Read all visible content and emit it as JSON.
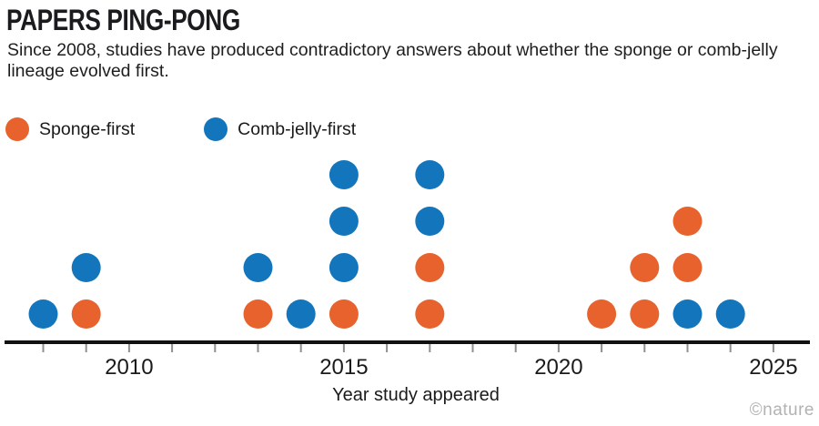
{
  "header": {
    "title": "PAPERS PING-PONG",
    "subtitle": "Since 2008, studies have produced contradictory answers about whether the sponge or comb-jelly lineage evolved first."
  },
  "legend": {
    "items": [
      {
        "key": "sponge-first",
        "label": "Sponge-first",
        "color": "#e7622d"
      },
      {
        "key": "comb-jelly-first",
        "label": "Comb-jelly-first",
        "color": "#1376bc"
      }
    ]
  },
  "chart_data": {
    "type": "scatter",
    "subtype": "stacked-dot-plot",
    "title": "PAPERS PING-PONG",
    "xlabel": "Year study appeared",
    "ylabel": "",
    "xlim": [
      2008,
      2025
    ],
    "grid": false,
    "legend_position": "top-left",
    "x_minor_ticks": [
      2008,
      2009,
      2010,
      2011,
      2012,
      2013,
      2014,
      2015,
      2016,
      2017,
      2018,
      2019,
      2020,
      2021,
      2022,
      2023,
      2024,
      2025
    ],
    "x_tick_labels": [
      "2010",
      "2015",
      "2020",
      "2025"
    ],
    "x_tick_label_years": [
      2010,
      2015,
      2020,
      2025
    ],
    "columns": [
      {
        "year": 2008,
        "stack": [
          "comb-jelly-first"
        ]
      },
      {
        "year": 2009,
        "stack": [
          "sponge-first",
          "comb-jelly-first"
        ]
      },
      {
        "year": 2013,
        "stack": [
          "sponge-first",
          "comb-jelly-first"
        ]
      },
      {
        "year": 2014,
        "stack": [
          "comb-jelly-first"
        ]
      },
      {
        "year": 2015,
        "stack": [
          "sponge-first",
          "comb-jelly-first",
          "comb-jelly-first",
          "comb-jelly-first"
        ]
      },
      {
        "year": 2017,
        "stack": [
          "sponge-first",
          "sponge-first",
          "comb-jelly-first",
          "comb-jelly-first"
        ]
      },
      {
        "year": 2021,
        "stack": [
          "sponge-first"
        ]
      },
      {
        "year": 2022,
        "stack": [
          "sponge-first",
          "sponge-first"
        ]
      },
      {
        "year": 2023,
        "stack": [
          "comb-jelly-first",
          "sponge-first",
          "sponge-first"
        ]
      },
      {
        "year": 2024,
        "stack": [
          "comb-jelly-first"
        ]
      }
    ],
    "series": [
      {
        "name": "Sponge-first",
        "color": "#e7622d",
        "years": [
          2009,
          2013,
          2015,
          2017,
          2017,
          2021,
          2022,
          2022,
          2023,
          2023
        ],
        "count": 10
      },
      {
        "name": "Comb-jelly-first",
        "color": "#1376bc",
        "years": [
          2008,
          2009,
          2013,
          2014,
          2015,
          2015,
          2015,
          2017,
          2017,
          2023,
          2024
        ],
        "count": 11
      }
    ],
    "axis_color": "#111111",
    "tick_color": "#909090",
    "tick_label_color": "#1a1a1a"
  },
  "footer": {
    "credit": "©nature"
  }
}
